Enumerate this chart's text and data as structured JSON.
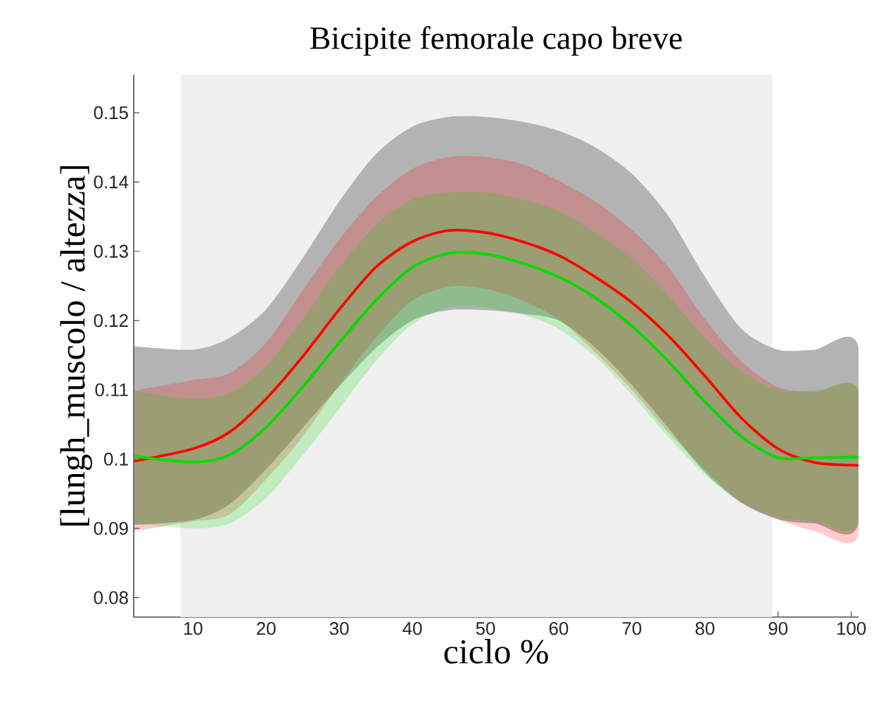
{
  "chart_data": {
    "type": "line",
    "title": "Bicipite femorale capo breve",
    "xlabel": "ciclo %",
    "ylabel": "[lungh_muscolo / altezza]",
    "x": [
      2,
      10,
      15,
      20,
      25,
      30,
      35,
      40,
      45,
      50,
      55,
      60,
      65,
      70,
      75,
      80,
      85,
      90,
      95,
      101
    ],
    "xlim": [
      1.9,
      101
    ],
    "ylim": [
      0.0772,
      0.1555
    ],
    "xticks": [
      10,
      20,
      30,
      40,
      50,
      60,
      70,
      80,
      90,
      100
    ],
    "yticks": [
      0.08,
      0.09,
      0.1,
      0.11,
      0.12,
      0.13,
      0.14,
      0.15
    ],
    "bands": [
      {
        "axis": "x",
        "from": 8.3,
        "to": 89.2,
        "color": "#f0f0f0"
      }
    ],
    "series": [
      {
        "color": "#b3b3b3",
        "values": [
          null,
          null,
          null,
          null,
          null,
          null,
          null,
          null,
          null,
          null,
          null,
          null,
          null,
          null,
          null,
          null,
          null,
          null,
          null,
          null
        ],
        "upper": [
          0.1163,
          0.1158,
          0.1175,
          0.1216,
          0.129,
          0.1372,
          0.144,
          0.148,
          0.1494,
          0.1494,
          0.1487,
          0.1474,
          0.145,
          0.1412,
          0.1351,
          0.1263,
          0.1188,
          0.1158,
          0.1158,
          0.1162
        ],
        "lower": [
          0.0905,
          0.0912,
          0.0935,
          0.0985,
          0.1045,
          0.1105,
          0.116,
          0.12,
          0.1215,
          0.1215,
          0.121,
          0.12,
          0.1161,
          0.1107,
          0.1045,
          0.0981,
          0.0937,
          0.0913,
          0.0907,
          0.0907
        ]
      },
      {
        "color": "#ff0000",
        "values": [
          0.0997,
          0.1015,
          0.1039,
          0.1087,
          0.1148,
          0.1216,
          0.1277,
          0.1314,
          0.133,
          0.1327,
          0.1314,
          0.1294,
          0.1263,
          0.1226,
          0.1178,
          0.112,
          0.1059,
          0.1015,
          0.0995,
          0.0991
        ],
        "upper": [
          0.1099,
          0.1114,
          0.1124,
          0.1168,
          0.1243,
          0.1317,
          0.1378,
          0.1419,
          0.1436,
          0.1436,
          0.1426,
          0.1402,
          0.1372,
          0.1331,
          0.1277,
          0.1202,
          0.1141,
          0.1104,
          0.1097,
          0.1097
        ],
        "lower": [
          0.0896,
          0.091,
          0.092,
          0.0971,
          0.1032,
          0.1107,
          0.1175,
          0.1229,
          0.1249,
          0.1246,
          0.1229,
          0.1202,
          0.1154,
          0.11,
          0.1039,
          0.0985,
          0.0937,
          0.0913,
          0.0896,
          0.089
        ]
      },
      {
        "color": "#00dd00",
        "values": [
          0.1004,
          0.0996,
          0.1006,
          0.1046,
          0.1104,
          0.1168,
          0.1229,
          0.1277,
          0.1297,
          0.1296,
          0.1283,
          0.1263,
          0.1233,
          0.1192,
          0.1141,
          0.1083,
          0.1032,
          0.1002,
          0.1002,
          0.1003
        ],
        "upper": [
          0.1099,
          0.1087,
          0.1095,
          0.1134,
          0.1202,
          0.1277,
          0.1338,
          0.1375,
          0.1385,
          0.1385,
          0.1375,
          0.1358,
          0.1328,
          0.129,
          0.1236,
          0.1175,
          0.1127,
          0.11,
          0.1099,
          0.1099
        ],
        "lower": [
          0.0907,
          0.09,
          0.0907,
          0.0944,
          0.1005,
          0.1073,
          0.1141,
          0.1195,
          0.1219,
          0.1219,
          0.1209,
          0.1188,
          0.1148,
          0.1093,
          0.1032,
          0.0978,
          0.0937,
          0.0916,
          0.091,
          0.0907
        ]
      }
    ]
  }
}
